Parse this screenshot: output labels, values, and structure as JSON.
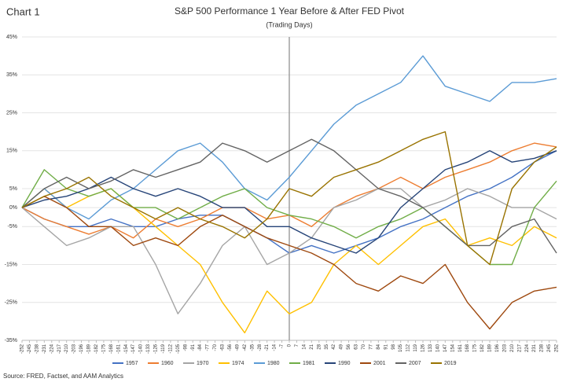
{
  "chart_data": {
    "type": "line",
    "label": "Chart 1",
    "title": "S&P 500 Performance 1 Year Before & After FED Pivot",
    "subtitle": "(Trading Days)",
    "source": "Source: FRED, Factset, and AAM Analytics",
    "x": [
      -252,
      -231,
      -210,
      -189,
      -168,
      -147,
      -126,
      -105,
      -84,
      -63,
      -42,
      -21,
      0,
      21,
      42,
      63,
      84,
      105,
      126,
      147,
      168,
      189,
      210,
      231,
      252
    ],
    "xlim": [
      -252,
      252
    ],
    "xticks": [
      -252,
      -245,
      -238,
      -231,
      -224,
      -217,
      -210,
      -203,
      -196,
      -189,
      -182,
      -175,
      -168,
      -161,
      -154,
      -147,
      -140,
      -133,
      -126,
      -119,
      -112,
      -105,
      -98,
      -91,
      -84,
      -77,
      -70,
      -63,
      -56,
      -49,
      -42,
      -35,
      -28,
      -21,
      -14,
      -7,
      0,
      7,
      14,
      21,
      28,
      35,
      42,
      49,
      56,
      63,
      70,
      77,
      84,
      91,
      98,
      105,
      112,
      119,
      126,
      133,
      140,
      147,
      154,
      161,
      168,
      175,
      182,
      189,
      196,
      203,
      210,
      217,
      224,
      231,
      238,
      245,
      252
    ],
    "ylim": [
      -35,
      45
    ],
    "yticks": [
      {
        "value": -35,
        "label": "-35%"
      },
      {
        "value": -25,
        "label": "-25%"
      },
      {
        "value": -15,
        "label": "-15%"
      },
      {
        "value": -5,
        "label": "-5%"
      },
      {
        "value": 0,
        "label": "0%"
      },
      {
        "value": 5,
        "label": "5%"
      },
      {
        "value": 15,
        "label": "15%"
      },
      {
        "value": 25,
        "label": "25%"
      },
      {
        "value": 35,
        "label": "35%"
      },
      {
        "value": 45,
        "label": "45%"
      }
    ],
    "grid": true,
    "legend": "bottom",
    "series": [
      {
        "name": "1957",
        "color": "#4472c4",
        "values": [
          0,
          -3,
          -5,
          -5,
          -3,
          -5,
          -5,
          -3,
          -2,
          -2,
          -5,
          -8,
          -12,
          -10,
          -12,
          -10,
          -8,
          -5,
          -3,
          0,
          3,
          5,
          8,
          12,
          15
        ]
      },
      {
        "name": "1960",
        "color": "#ed7d31",
        "values": [
          0,
          -3,
          -5,
          -7,
          -5,
          -8,
          -3,
          -5,
          -3,
          0,
          0,
          -3,
          -2,
          -5,
          0,
          3,
          5,
          8,
          5,
          8,
          10,
          12,
          15,
          17,
          16
        ]
      },
      {
        "name": "1970",
        "color": "#a5a5a5",
        "values": [
          0,
          -5,
          -10,
          -8,
          -5,
          -5,
          -15,
          -28,
          -20,
          -10,
          -5,
          -15,
          -12,
          -8,
          0,
          2,
          5,
          5,
          0,
          2,
          5,
          3,
          0,
          0,
          -3
        ]
      },
      {
        "name": "1974",
        "color": "#ffc000",
        "values": [
          0,
          5,
          0,
          3,
          5,
          0,
          -5,
          -10,
          -15,
          -25,
          -33,
          -22,
          -28,
          -25,
          -15,
          -10,
          -15,
          -10,
          -5,
          -3,
          -10,
          -8,
          -10,
          -5,
          -8
        ]
      },
      {
        "name": "1980",
        "color": "#5b9bd5",
        "values": [
          0,
          5,
          0,
          -3,
          2,
          5,
          10,
          15,
          17,
          12,
          5,
          2,
          8,
          15,
          22,
          27,
          30,
          33,
          40,
          32,
          30,
          28,
          33,
          33,
          34
        ]
      },
      {
        "name": "1981",
        "color": "#70ad47",
        "values": [
          0,
          10,
          5,
          3,
          5,
          0,
          0,
          -3,
          0,
          3,
          5,
          0,
          -2,
          -3,
          -5,
          -8,
          -5,
          -3,
          0,
          -5,
          -10,
          -15,
          -15,
          0,
          7
        ]
      },
      {
        "name": "1990",
        "color": "#264478",
        "values": [
          0,
          2,
          3,
          5,
          8,
          5,
          3,
          5,
          3,
          0,
          0,
          -5,
          -5,
          -8,
          -10,
          -12,
          -8,
          0,
          5,
          10,
          12,
          15,
          12,
          13,
          15
        ]
      },
      {
        "name": "2001",
        "color": "#9e480e",
        "values": [
          0,
          3,
          0,
          -5,
          -5,
          -10,
          -8,
          -10,
          -5,
          -2,
          -5,
          -8,
          -10,
          -12,
          -15,
          -20,
          -22,
          -18,
          -20,
          -15,
          -25,
          -32,
          -25,
          -22,
          -21
        ]
      },
      {
        "name": "2007",
        "color": "#636363",
        "values": [
          0,
          5,
          8,
          5,
          7,
          10,
          8,
          10,
          12,
          17,
          15,
          12,
          15,
          18,
          15,
          10,
          5,
          3,
          0,
          -5,
          -10,
          -10,
          -5,
          -3,
          -12
        ]
      },
      {
        "name": "2019",
        "color": "#997300",
        "values": [
          0,
          3,
          5,
          8,
          3,
          0,
          -3,
          0,
          -3,
          -5,
          -8,
          -3,
          5,
          3,
          8,
          10,
          12,
          15,
          18,
          20,
          -10,
          -15,
          5,
          12,
          16
        ]
      }
    ]
  }
}
